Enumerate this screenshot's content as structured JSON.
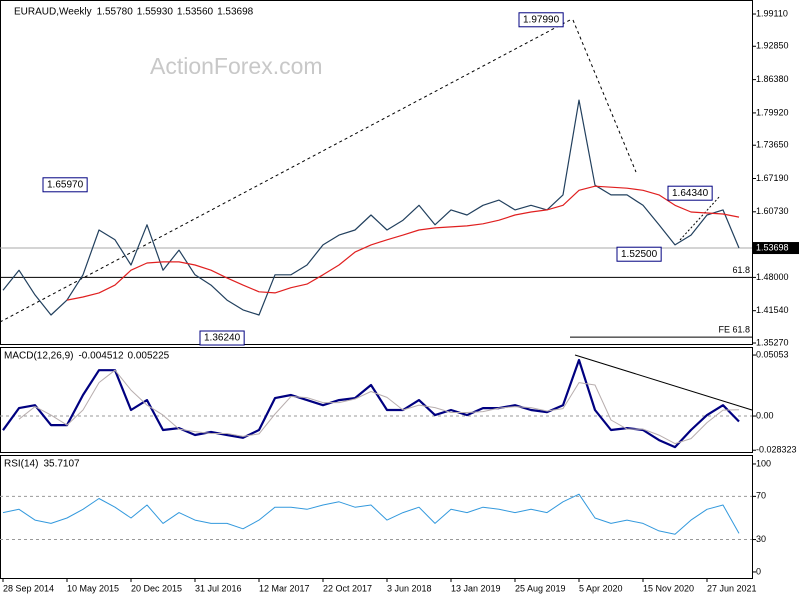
{
  "chart_data": [
    {
      "type": "line",
      "title": "EURAUD,Weekly",
      "header_values": [
        "1.55780",
        "1.55930",
        "1.53560",
        "1.53698"
      ],
      "watermark": "ActionForex.com",
      "ylim": [
        1.3527,
        2.0183
      ],
      "yticks": [
        {
          "value": 1.9911,
          "label": "1.99110"
        },
        {
          "value": 1.9285,
          "label": "1.92850"
        },
        {
          "value": 1.8638,
          "label": "1.86380"
        },
        {
          "value": 1.7992,
          "label": "1.79920"
        },
        {
          "value": 1.7365,
          "label": "1.73650"
        },
        {
          "value": 1.6719,
          "label": "1.67190"
        },
        {
          "value": 1.6073,
          "label": "1.60730"
        },
        {
          "value": 1.48,
          "label": "1.48000"
        },
        {
          "value": 1.4154,
          "label": "1.41540"
        },
        {
          "value": 1.3527,
          "label": "1.35270"
        }
      ],
      "last_price": 1.53698,
      "series": [
        {
          "color": "#22405e",
          "line_width": 1.2,
          "values": [
            1.455,
            1.494,
            1.446,
            1.407,
            1.436,
            1.485,
            1.572,
            1.553,
            1.504,
            1.582,
            1.494,
            1.533,
            1.485,
            1.465,
            1.436,
            1.417,
            1.407,
            1.485,
            1.485,
            1.504,
            1.543,
            1.562,
            1.572,
            1.601,
            1.572,
            1.591,
            1.62,
            1.582,
            1.611,
            1.601,
            1.62,
            1.63,
            1.611,
            1.62,
            1.611,
            1.64,
            1.824,
            1.659,
            1.64,
            1.64,
            1.62,
            1.582,
            1.543,
            1.562,
            1.601,
            1.611,
            1.537
          ]
        },
        {
          "color": "#e02020",
          "line_width": 1.2,
          "values": [
            null,
            null,
            null,
            null,
            1.436,
            1.442,
            1.45,
            1.465,
            1.494,
            1.508,
            1.51,
            1.51,
            1.504,
            1.494,
            1.479,
            1.465,
            1.452,
            1.45,
            1.46,
            1.467,
            1.485,
            1.504,
            1.529,
            1.543,
            1.553,
            1.562,
            1.572,
            1.576,
            1.578,
            1.58,
            1.584,
            1.591,
            1.601,
            1.607,
            1.611,
            1.62,
            1.649,
            1.657,
            1.655,
            1.653,
            1.649,
            1.64,
            1.62,
            1.607,
            1.605,
            1.603,
            1.597
          ]
        }
      ],
      "annotations": [
        {
          "text": "1.65970",
          "value": 1.6597
        },
        {
          "text": "1.36240",
          "value": 1.3624
        },
        {
          "text": "1.97990",
          "value": 1.9799
        },
        {
          "text": "1.52500",
          "value": 1.525
        },
        {
          "text": "1.64340",
          "value": 1.6434
        }
      ],
      "levels": [
        {
          "label": "61.8",
          "value": 1.48
        },
        {
          "label": "FE 61.8",
          "value": 1.364
        }
      ]
    },
    {
      "type": "line",
      "title": "MACD(12,26,9)",
      "header_values": [
        "-0.004512",
        "0.005225"
      ],
      "ylim": [
        -0.0298,
        0.0572
      ],
      "yticks": [
        0.05053,
        {
          "value": 0,
          "label": "0.00"
        },
        -0.028323
      ],
      "levels": [
        0
      ],
      "series": [
        {
          "color": "#000080",
          "line_width": 2.2,
          "values": [
            -0.0117,
            0.0066,
            0.009,
            -0.0075,
            -0.0075,
            0.0174,
            0.038,
            0.038,
            0.005,
            0.0132,
            -0.0116,
            -0.01,
            -0.0157,
            -0.0132,
            -0.0157,
            -0.018,
            -0.0116,
            0.0149,
            0.0174,
            0.0132,
            0.009,
            0.0132,
            0.0149,
            0.0257,
            0.005,
            0.005,
            0.0132,
            0.0008,
            0.005,
            0.0008,
            0.0066,
            0.0066,
            0.009,
            0.005,
            0.0033,
            0.009,
            0.0464,
            0.005,
            -0.0116,
            -0.01,
            -0.0116,
            -0.0199,
            -0.0257,
            -0.0116,
            0.0008,
            0.009,
            -0.0045
          ]
        },
        {
          "color": "#b8aeae",
          "line_width": 1,
          "values": [
            null,
            -0.0026,
            0.0078,
            0.0008,
            -0.0075,
            0.005,
            0.0277,
            0.038,
            0.0215,
            0.0091,
            0.0008,
            -0.0108,
            -0.0129,
            -0.0145,
            -0.0145,
            -0.0169,
            -0.0148,
            0.0017,
            0.0162,
            0.0153,
            0.0111,
            0.0111,
            0.0141,
            0.0203,
            0.0154,
            0.005,
            0.0091,
            0.007,
            0.0029,
            0.0029,
            0.0037,
            0.0066,
            0.0078,
            0.007,
            0.0042,
            0.0062,
            0.0277,
            0.0257,
            -0.0033,
            -0.0108,
            -0.0108,
            -0.0158,
            -0.0228,
            -0.0187,
            -0.0054,
            0.0049,
            0.0052
          ]
        }
      ]
    },
    {
      "type": "line",
      "title": "RSI(14)",
      "header_values": [
        "35.7107"
      ],
      "ylim": [
        -5.6,
        108.3
      ],
      "yticks": [
        100,
        70,
        30,
        0
      ],
      "levels": [
        70,
        30
      ],
      "categories": [
        "28 Sep 2014",
        null,
        null,
        null,
        "10 May 2015",
        null,
        null,
        null,
        "20 Dec 2015",
        null,
        null,
        null,
        "31 Jul 2016",
        null,
        null,
        null,
        "12 Mar 2017",
        null,
        null,
        null,
        "22 Oct 2017",
        null,
        null,
        null,
        "3 Jun 2018",
        null,
        null,
        null,
        "13 Jan 2019",
        null,
        null,
        null,
        "25 Aug 2019",
        null,
        null,
        null,
        "5 Apr 2020",
        null,
        null,
        null,
        "15 Nov 2020",
        null,
        null,
        null,
        "27 Jun 2021",
        null,
        null
      ],
      "series": [
        {
          "color": "#3399dd",
          "line_width": 1,
          "values": [
            55,
            58,
            48,
            45,
            50,
            58,
            68,
            60,
            50,
            62,
            45,
            55,
            48,
            45,
            45,
            40,
            48,
            60,
            60,
            58,
            62,
            65,
            60,
            62,
            48,
            55,
            60,
            45,
            58,
            55,
            60,
            58,
            55,
            58,
            55,
            65,
            72,
            50,
            45,
            48,
            45,
            38,
            35,
            48,
            58,
            62,
            35.71
          ]
        }
      ]
    }
  ]
}
